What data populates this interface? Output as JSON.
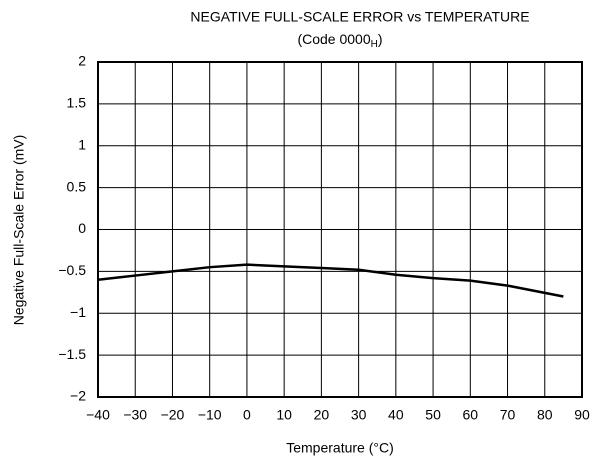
{
  "chart_data": {
    "type": "line",
    "title": "NEGATIVE FULL-SCALE ERROR vs TEMPERATURE",
    "subtitle": {
      "text": "(Code 0000",
      "subscript": "H",
      "suffix": ")"
    },
    "x_label": "Temperature (°C)",
    "y_label": "Negative Full-Scale Error (mV)",
    "x": [
      -40,
      -30,
      -20,
      -10,
      0,
      10,
      20,
      30,
      40,
      50,
      60,
      70,
      85
    ],
    "series": [
      {
        "name": "Negative Full-Scale Error",
        "color": "#000000",
        "values": [
          -0.6,
          -0.55,
          -0.5,
          -0.45,
          -0.42,
          -0.44,
          -0.46,
          -0.48,
          -0.54,
          -0.58,
          -0.61,
          -0.67,
          -0.8
        ]
      }
    ],
    "xlim": [
      -40,
      90
    ],
    "xticks": [
      {
        "value": -40,
        "label": "−40"
      },
      {
        "value": -30,
        "label": "−30"
      },
      {
        "value": -20,
        "label": "−20"
      },
      {
        "value": -10,
        "label": "−10"
      },
      0,
      10,
      20,
      30,
      40,
      50,
      60,
      70,
      80,
      90
    ],
    "ylim": [
      -2,
      2
    ],
    "yticks": [
      {
        "value": -2,
        "label": "−2"
      },
      {
        "value": -1.5,
        "label": "−1.5"
      },
      {
        "value": -1,
        "label": "−1"
      },
      {
        "value": -0.5,
        "label": "−0.5"
      },
      0,
      0.5,
      1,
      1.5,
      2
    ],
    "grid": true
  }
}
